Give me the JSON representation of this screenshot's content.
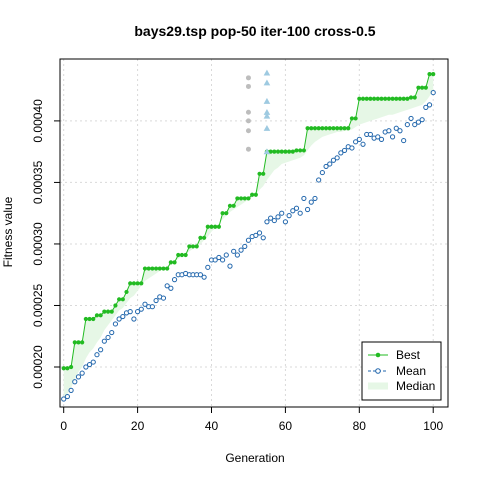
{
  "chart_data": {
    "type": "line",
    "title": "bays29.tsp pop-50 iter-100 cross-0.5",
    "xlabel": "Generation",
    "ylabel": "Fitness value",
    "xlim": [
      -1,
      104
    ],
    "ylim": [
      0.0001675,
      0.0004503
    ],
    "xticks": [
      0,
      20,
      40,
      60,
      80,
      100
    ],
    "xtick_labels": [
      "0",
      "20",
      "40",
      "60",
      "80",
      "100"
    ],
    "yticks": [
      0.0002,
      0.00025,
      0.0003,
      0.00035,
      0.0004
    ],
    "ytick_labels": [
      "0.00020",
      "0.00025",
      "0.00030",
      "0.00035",
      "0.00040"
    ],
    "grid": true,
    "legend_position": "bottom-right",
    "colors": {
      "best": "#22bb22",
      "mean": "#2166ac",
      "median_fill": "#e6f7e6",
      "grid": "#d9d9d9",
      "outlier_gray": "#bdbdbd",
      "outlier_blue": "#9ecae1"
    },
    "legend": {
      "best_label": "Best",
      "mean_label": "Mean",
      "median_label": "Median"
    },
    "series": [
      {
        "name": "Best",
        "values": [
          0.000199,
          0.000199,
          0.0002,
          0.00022,
          0.00022,
          0.00022,
          0.000239,
          0.000239,
          0.000239,
          0.000242,
          0.000242,
          0.000245,
          0.000245,
          0.000245,
          0.00025,
          0.000255,
          0.000255,
          0.000261,
          0.000268,
          0.000268,
          0.000268,
          0.000268,
          0.00028,
          0.00028,
          0.00028,
          0.00028,
          0.00028,
          0.00028,
          0.00028,
          0.000285,
          0.000285,
          0.000291,
          0.000291,
          0.000291,
          0.000298,
          0.000298,
          0.000298,
          0.000305,
          0.000305,
          0.000314,
          0.000314,
          0.000314,
          0.000314,
          0.000325,
          0.000325,
          0.000331,
          0.000331,
          0.000337,
          0.000337,
          0.000337,
          0.000337,
          0.00034,
          0.00034,
          0.000357,
          0.000357,
          0.000375,
          0.000375,
          0.000375,
          0.000375,
          0.000375,
          0.000375,
          0.000375,
          0.000375,
          0.000376,
          0.000376,
          0.000376,
          0.000394,
          0.000394,
          0.000394,
          0.000394,
          0.000394,
          0.000394,
          0.000394,
          0.000394,
          0.000394,
          0.000394,
          0.000394,
          0.000394,
          0.000402,
          0.000402,
          0.000418,
          0.000418,
          0.000418,
          0.000418,
          0.000418,
          0.000418,
          0.000418,
          0.000418,
          0.000418,
          0.000418,
          0.000418,
          0.000418,
          0.000418,
          0.000418,
          0.000419,
          0.000419,
          0.000427,
          0.000427,
          0.000427,
          0.000438,
          0.000438
        ]
      },
      {
        "name": "Mean",
        "values": [
          0.000174,
          0.000176,
          0.000181,
          0.000188,
          0.000192,
          0.000195,
          0.0002,
          0.000202,
          0.000204,
          0.00021,
          0.000214,
          0.000221,
          0.000224,
          0.000228,
          0.000235,
          0.000239,
          0.000241,
          0.000244,
          0.000245,
          0.000239,
          0.000245,
          0.000247,
          0.000251,
          0.000249,
          0.000249,
          0.000254,
          0.000257,
          0.000256,
          0.000266,
          0.000264,
          0.000271,
          0.000275,
          0.000275,
          0.000276,
          0.000275,
          0.000275,
          0.000275,
          0.000275,
          0.000273,
          0.000281,
          0.000287,
          0.000287,
          0.000289,
          0.000287,
          0.000291,
          0.000282,
          0.000294,
          0.000291,
          0.000295,
          0.000298,
          0.000303,
          0.000306,
          0.000307,
          0.000309,
          0.000305,
          0.000318,
          0.000321,
          0.000319,
          0.000322,
          0.000325,
          0.000318,
          0.000323,
          0.000327,
          0.000329,
          0.000325,
          0.000337,
          0.000328,
          0.000334,
          0.000337,
          0.000352,
          0.000358,
          0.000363,
          0.000365,
          0.000368,
          0.00037,
          0.000374,
          0.000376,
          0.000379,
          0.000378,
          0.000383,
          0.000385,
          0.000381,
          0.000389,
          0.000389,
          0.000386,
          0.000387,
          0.000385,
          0.000391,
          0.000392,
          0.000387,
          0.000394,
          0.000392,
          0.000384,
          0.000397,
          0.000402,
          0.000397,
          0.000399,
          0.000401,
          0.000411,
          0.000413,
          0.000423
        ]
      },
      {
        "name": "Median",
        "values": [
          0.000174,
          0.000178,
          0.000183,
          0.00019,
          0.000196,
          0.0002,
          0.000207,
          0.000212,
          0.000215,
          0.00022,
          0.000224,
          0.00023,
          0.000234,
          0.000238,
          0.000242,
          0.000246,
          0.000248,
          0.000252,
          0.000256,
          0.000258,
          0.000262,
          0.000266,
          0.00027,
          0.000272,
          0.000274,
          0.000276,
          0.000278,
          0.00028,
          0.000282,
          0.000284,
          0.000286,
          0.000288,
          0.00029,
          0.000292,
          0.000294,
          0.000296,
          0.000298,
          0.0003,
          0.000303,
          0.000306,
          0.00031,
          0.000313,
          0.000316,
          0.00032,
          0.000323,
          0.000326,
          0.000328,
          0.00033,
          0.000332,
          0.000334,
          0.000336,
          0.000338,
          0.00034,
          0.000344,
          0.000347,
          0.000352,
          0.000356,
          0.00036,
          0.000362,
          0.000365,
          0.000366,
          0.000367,
          0.000368,
          0.000369,
          0.00037,
          0.000372,
          0.000376,
          0.00038,
          0.000383,
          0.000385,
          0.000387,
          0.000388,
          0.000389,
          0.00039,
          0.000391,
          0.000391,
          0.000392,
          0.000392,
          0.000393,
          0.000395,
          0.000397,
          0.000398,
          0.000399,
          0.0004,
          0.000401,
          0.000402,
          0.000403,
          0.000404,
          0.000405,
          0.000405,
          0.000406,
          0.000407,
          0.000408,
          0.000409,
          0.00041,
          0.000411,
          0.000412,
          0.000413,
          0.000416,
          0.00042,
          0.000425
        ]
      }
    ],
    "outliers": [
      {
        "x": 50,
        "values": [
          0.000435,
          0.000428,
          0.000407,
          0.0004,
          0.000392,
          0.000377
        ],
        "shape": "circle",
        "color": "gray"
      },
      {
        "x": 55,
        "values": [
          0.000439,
          0.000431,
          0.000416,
          0.000407,
          0.000404,
          0.000394,
          0.000375
        ],
        "shape": "triangle",
        "color": "blue"
      }
    ]
  }
}
